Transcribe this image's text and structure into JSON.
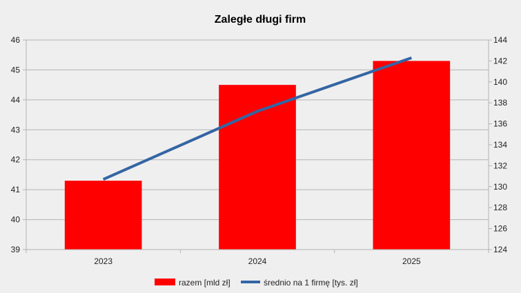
{
  "chart_data": {
    "type": "bar",
    "title": "Zaległe długi firm",
    "categories": [
      "2023",
      "2024",
      "2025"
    ],
    "y_left": {
      "min": 39,
      "max": 46,
      "step": 1,
      "ticks": [
        "39",
        "40",
        "41",
        "42",
        "43",
        "44",
        "45",
        "46"
      ]
    },
    "y_right": {
      "min": 124,
      "max": 144,
      "step": 2,
      "ticks": [
        "124",
        "126",
        "128",
        "130",
        "132",
        "134",
        "136",
        "138",
        "140",
        "142",
        "144"
      ]
    },
    "grid": true,
    "legend_position": "bottom",
    "series": [
      {
        "name": "razem [mld zł]",
        "kind": "bar",
        "axis": "left",
        "color": "#ff0000",
        "values": [
          41.3,
          44.5,
          45.3
        ]
      },
      {
        "name": "średnio na 1 firmę [tys. zł]",
        "kind": "line",
        "axis": "right",
        "color": "#3465a4",
        "values": [
          130.7,
          137.2,
          142.3
        ]
      }
    ]
  }
}
